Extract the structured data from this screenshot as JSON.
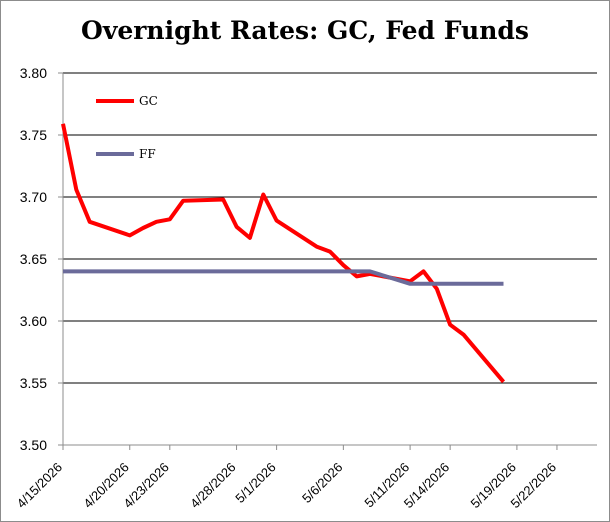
{
  "chart_data": {
    "type": "line",
    "title": "Overnight Rates: GC, Fed Funds",
    "xlabel": "",
    "ylabel": "",
    "ylim": [
      3.5,
      3.8
    ],
    "yticks": [
      "3.50",
      "3.55",
      "3.60",
      "3.65",
      "3.70",
      "3.75",
      "3.80"
    ],
    "xlim": [
      "2026-04-15",
      "2026-05-25"
    ],
    "xticks": [
      "4/15/2026",
      "4/20/2026",
      "4/23/2026",
      "4/28/2026",
      "5/1/2026",
      "5/6/2026",
      "5/11/2026",
      "5/14/2026",
      "5/19/2026",
      "5/22/2026"
    ],
    "grid": "horizontal",
    "legend_position": "top-left",
    "series": [
      {
        "name": "GC",
        "color": "#ff0000",
        "points": [
          [
            "2026-04-15",
            3.759
          ],
          [
            "2026-04-16",
            3.706
          ],
          [
            "2026-04-17",
            3.68
          ],
          [
            "2026-04-20",
            3.669
          ],
          [
            "2026-04-21",
            3.675
          ],
          [
            "2026-04-22",
            3.68
          ],
          [
            "2026-04-23",
            3.682
          ],
          [
            "2026-04-24",
            3.697
          ],
          [
            "2026-04-27",
            3.698
          ],
          [
            "2026-04-28",
            3.676
          ],
          [
            "2026-04-29",
            3.667
          ],
          [
            "2026-04-30",
            3.702
          ],
          [
            "2026-05-01",
            3.681
          ],
          [
            "2026-05-04",
            3.66
          ],
          [
            "2026-05-05",
            3.656
          ],
          [
            "2026-05-06",
            3.645
          ],
          [
            "2026-05-07",
            3.636
          ],
          [
            "2026-05-08",
            3.638
          ],
          [
            "2026-05-11",
            3.632
          ],
          [
            "2026-05-12",
            3.64
          ],
          [
            "2026-05-13",
            3.626
          ],
          [
            "2026-05-14",
            3.597
          ],
          [
            "2026-05-15",
            3.589
          ],
          [
            "2026-05-18",
            3.551
          ]
        ]
      },
      {
        "name": "FF",
        "color": "#6b6b9a",
        "points": [
          [
            "2026-04-15",
            3.64
          ],
          [
            "2026-05-07",
            3.64
          ],
          [
            "2026-05-08",
            3.64
          ],
          [
            "2026-05-11",
            3.63
          ],
          [
            "2026-05-18",
            3.63
          ]
        ]
      }
    ]
  }
}
